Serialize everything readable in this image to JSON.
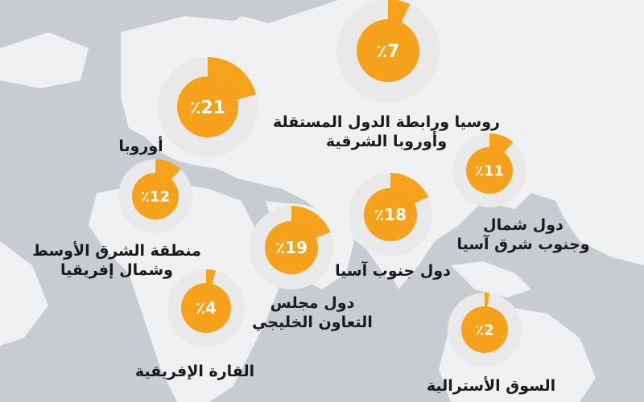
{
  "chart_data": {
    "type": "pie",
    "unit_symbol": "٪",
    "colors": {
      "slice": "#f7a21b",
      "ring": "#e9e9e9",
      "disc": "#f5a11c"
    },
    "series": [
      {
        "category": "روسيا ورابطة الدول المستقلة\nوأوروبا الشرقية",
        "value": 7,
        "label": "٪7"
      },
      {
        "category": "أوروبا",
        "value": 21,
        "label": "٪21"
      },
      {
        "category": "دول شمال\nوجنوب شرق آسيا",
        "value": 11,
        "label": "٪11"
      },
      {
        "category": "منطقة الشرق الأوسط\nوشمال إفريقيا",
        "value": 12,
        "label": "٪12"
      },
      {
        "category": "دول جنوب آسيا",
        "value": 18,
        "label": "٪18"
      },
      {
        "category": "دول مجلس\nالتعاون الخليجي",
        "value": 19,
        "label": "٪19"
      },
      {
        "category": "القارة الإفريقية",
        "value": 4,
        "label": "٪4"
      },
      {
        "category": "السوق الأسترالية",
        "value": 2,
        "label": "٪2"
      }
    ]
  }
}
